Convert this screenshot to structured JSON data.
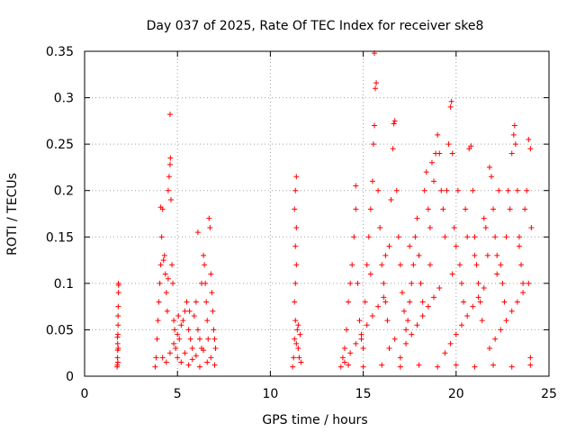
{
  "chart_data": {
    "type": "scatter",
    "title": "Day 037 of 2025, Rate Of TEC Index for receiver ske8",
    "xlabel": "GPS time / hours",
    "ylabel": "ROTI / TECUs",
    "xlim": [
      0,
      25
    ],
    "ylim": [
      0,
      0.35
    ],
    "xticks": [
      0,
      5,
      10,
      15,
      20,
      25
    ],
    "xtick_labels": [
      "0",
      "5",
      "10",
      "15",
      "20",
      "25"
    ],
    "yticks": [
      0,
      0.05,
      0.1,
      0.15,
      0.2,
      0.25,
      0.3,
      0.35
    ],
    "ytick_labels": [
      "0",
      "0.05",
      "0.1",
      "0.15",
      "0.2",
      "0.25",
      "0.3",
      "0.35"
    ],
    "grid": true,
    "marker": "plus",
    "color": "#ff0000",
    "series": [
      {
        "name": "ROTI",
        "points": [
          [
            1.75,
            0.01
          ],
          [
            1.76,
            0.012
          ],
          [
            1.77,
            0.02
          ],
          [
            1.78,
            0.028
          ],
          [
            1.78,
            0.035
          ],
          [
            1.79,
            0.045
          ],
          [
            1.8,
            0.055
          ],
          [
            1.8,
            0.065
          ],
          [
            1.81,
            0.075
          ],
          [
            1.82,
            0.09
          ],
          [
            1.82,
            0.1
          ],
          [
            1.83,
            0.098
          ],
          [
            1.77,
            0.042
          ],
          [
            1.79,
            0.015
          ],
          [
            1.81,
            0.03
          ],
          [
            3.8,
            0.01
          ],
          [
            3.85,
            0.02
          ],
          [
            3.9,
            0.04
          ],
          [
            3.95,
            0.06
          ],
          [
            4.0,
            0.08
          ],
          [
            4.05,
            0.1
          ],
          [
            4.1,
            0.12
          ],
          [
            4.15,
            0.15
          ],
          [
            4.2,
            0.18
          ],
          [
            4.1,
            0.182
          ],
          [
            4.3,
            0.13
          ],
          [
            4.35,
            0.11
          ],
          [
            4.4,
            0.09
          ],
          [
            4.45,
            0.07
          ],
          [
            4.5,
            0.2
          ],
          [
            4.55,
            0.215
          ],
          [
            4.6,
            0.228
          ],
          [
            4.62,
            0.235
          ],
          [
            4.6,
            0.282
          ],
          [
            4.65,
            0.19
          ],
          [
            4.7,
            0.12
          ],
          [
            4.75,
            0.1
          ],
          [
            4.8,
            0.06
          ],
          [
            4.85,
            0.05
          ],
          [
            4.9,
            0.03
          ],
          [
            5.0,
            0.02
          ],
          [
            5.1,
            0.04
          ],
          [
            5.2,
            0.055
          ],
          [
            5.3,
            0.06
          ],
          [
            5.4,
            0.07
          ],
          [
            5.5,
            0.08
          ],
          [
            5.6,
            0.05
          ],
          [
            5.7,
            0.04
          ],
          [
            5.8,
            0.03
          ],
          [
            5.9,
            0.065
          ],
          [
            6.0,
            0.08
          ],
          [
            6.1,
            0.05
          ],
          [
            6.2,
            0.04
          ],
          [
            6.3,
            0.03
          ],
          [
            6.4,
            0.13
          ],
          [
            6.45,
            0.12
          ],
          [
            6.5,
            0.1
          ],
          [
            6.55,
            0.08
          ],
          [
            6.6,
            0.06
          ],
          [
            6.65,
            0.04
          ],
          [
            6.7,
            0.17
          ],
          [
            6.75,
            0.16
          ],
          [
            6.8,
            0.11
          ],
          [
            6.85,
            0.09
          ],
          [
            6.9,
            0.07
          ],
          [
            6.95,
            0.05
          ],
          [
            7.0,
            0.04
          ],
          [
            7.05,
            0.03
          ],
          [
            4.2,
            0.02
          ],
          [
            4.4,
            0.015
          ],
          [
            4.6,
            0.025
          ],
          [
            4.8,
            0.035
          ],
          [
            5.0,
            0.045
          ],
          [
            5.2,
            0.015
          ],
          [
            5.4,
            0.025
          ],
          [
            5.6,
            0.012
          ],
          [
            5.8,
            0.018
          ],
          [
            6.0,
            0.022
          ],
          [
            6.2,
            0.01
          ],
          [
            6.4,
            0.028
          ],
          [
            6.6,
            0.015
          ],
          [
            6.8,
            0.02
          ],
          [
            7.0,
            0.012
          ],
          [
            6.1,
            0.155
          ],
          [
            6.3,
            0.1
          ],
          [
            4.25,
            0.125
          ],
          [
            4.5,
            0.105
          ],
          [
            5.05,
            0.065
          ],
          [
            5.65,
            0.07
          ],
          [
            11.2,
            0.01
          ],
          [
            11.25,
            0.02
          ],
          [
            11.3,
            0.04
          ],
          [
            11.35,
            0.06
          ],
          [
            11.3,
            0.08
          ],
          [
            11.35,
            0.1
          ],
          [
            11.4,
            0.12
          ],
          [
            11.35,
            0.14
          ],
          [
            11.4,
            0.16
          ],
          [
            11.3,
            0.18
          ],
          [
            11.35,
            0.2
          ],
          [
            11.4,
            0.215
          ],
          [
            11.45,
            0.05
          ],
          [
            11.5,
            0.03
          ],
          [
            11.55,
            0.02
          ],
          [
            11.6,
            0.045
          ],
          [
            11.65,
            0.015
          ],
          [
            11.4,
            0.035
          ],
          [
            11.5,
            0.055
          ],
          [
            13.8,
            0.01
          ],
          [
            13.9,
            0.02
          ],
          [
            14.0,
            0.03
          ],
          [
            14.1,
            0.05
          ],
          [
            14.2,
            0.08
          ],
          [
            14.3,
            0.1
          ],
          [
            14.4,
            0.12
          ],
          [
            14.5,
            0.15
          ],
          [
            14.6,
            0.18
          ],
          [
            14.6,
            0.205
          ],
          [
            14.7,
            0.1
          ],
          [
            14.8,
            0.06
          ],
          [
            14.9,
            0.04
          ],
          [
            15.0,
            0.03
          ],
          [
            15.1,
            0.08
          ],
          [
            15.2,
            0.12
          ],
          [
            15.3,
            0.15
          ],
          [
            15.4,
            0.18
          ],
          [
            15.5,
            0.21
          ],
          [
            15.55,
            0.25
          ],
          [
            15.6,
            0.27
          ],
          [
            15.65,
            0.31
          ],
          [
            15.7,
            0.316
          ],
          [
            15.6,
            0.348
          ],
          [
            15.8,
            0.2
          ],
          [
            15.9,
            0.16
          ],
          [
            16.0,
            0.12
          ],
          [
            16.1,
            0.1
          ],
          [
            16.2,
            0.08
          ],
          [
            16.3,
            0.06
          ],
          [
            16.4,
            0.14
          ],
          [
            16.5,
            0.19
          ],
          [
            16.6,
            0.245
          ],
          [
            16.65,
            0.272
          ],
          [
            16.7,
            0.275
          ],
          [
            16.8,
            0.2
          ],
          [
            16.9,
            0.15
          ],
          [
            17.0,
            0.12
          ],
          [
            17.1,
            0.09
          ],
          [
            17.2,
            0.07
          ],
          [
            17.3,
            0.05
          ],
          [
            17.4,
            0.06
          ],
          [
            17.5,
            0.08
          ],
          [
            17.6,
            0.1
          ],
          [
            17.7,
            0.12
          ],
          [
            17.8,
            0.15
          ],
          [
            17.9,
            0.17
          ],
          [
            18.0,
            0.13
          ],
          [
            18.1,
            0.1
          ],
          [
            18.2,
            0.08
          ],
          [
            18.3,
            0.2
          ],
          [
            18.4,
            0.22
          ],
          [
            18.5,
            0.18
          ],
          [
            18.6,
            0.16
          ],
          [
            18.7,
            0.23
          ],
          [
            18.8,
            0.21
          ],
          [
            18.9,
            0.24
          ],
          [
            19.0,
            0.26
          ],
          [
            19.1,
            0.24
          ],
          [
            19.2,
            0.2
          ],
          [
            19.3,
            0.18
          ],
          [
            19.4,
            0.15
          ],
          [
            19.5,
            0.2
          ],
          [
            19.6,
            0.25
          ],
          [
            19.7,
            0.29
          ],
          [
            19.75,
            0.296
          ],
          [
            19.8,
            0.24
          ],
          [
            19.9,
            0.16
          ],
          [
            20.0,
            0.14
          ],
          [
            20.1,
            0.2
          ],
          [
            20.2,
            0.12
          ],
          [
            20.3,
            0.1
          ],
          [
            20.4,
            0.08
          ],
          [
            20.5,
            0.18
          ],
          [
            20.6,
            0.15
          ],
          [
            20.7,
            0.245
          ],
          [
            20.8,
            0.248
          ],
          [
            20.9,
            0.2
          ],
          [
            21.0,
            0.15
          ],
          [
            21.1,
            0.12
          ],
          [
            21.2,
            0.1
          ],
          [
            21.3,
            0.08
          ],
          [
            21.4,
            0.06
          ],
          [
            21.5,
            0.17
          ],
          [
            21.6,
            0.16
          ],
          [
            21.7,
            0.13
          ],
          [
            21.8,
            0.225
          ],
          [
            21.9,
            0.215
          ],
          [
            22.0,
            0.18
          ],
          [
            22.1,
            0.15
          ],
          [
            22.2,
            0.13
          ],
          [
            22.3,
            0.2
          ],
          [
            22.4,
            0.12
          ],
          [
            22.5,
            0.1
          ],
          [
            22.6,
            0.08
          ],
          [
            22.7,
            0.15
          ],
          [
            22.8,
            0.2
          ],
          [
            22.9,
            0.18
          ],
          [
            23.0,
            0.24
          ],
          [
            23.1,
            0.26
          ],
          [
            23.15,
            0.27
          ],
          [
            23.2,
            0.25
          ],
          [
            23.3,
            0.2
          ],
          [
            23.4,
            0.15
          ],
          [
            23.5,
            0.12
          ],
          [
            23.6,
            0.1
          ],
          [
            23.7,
            0.18
          ],
          [
            23.8,
            0.2
          ],
          [
            23.9,
            0.255
          ],
          [
            24.0,
            0.245
          ],
          [
            24.05,
            0.16
          ],
          [
            14.0,
            0.015
          ],
          [
            14.3,
            0.025
          ],
          [
            14.6,
            0.035
          ],
          [
            14.9,
            0.045
          ],
          [
            15.2,
            0.055
          ],
          [
            15.5,
            0.065
          ],
          [
            15.8,
            0.075
          ],
          [
            16.1,
            0.085
          ],
          [
            16.4,
            0.03
          ],
          [
            16.7,
            0.04
          ],
          [
            17.0,
            0.02
          ],
          [
            17.3,
            0.035
          ],
          [
            17.6,
            0.045
          ],
          [
            17.9,
            0.055
          ],
          [
            18.2,
            0.065
          ],
          [
            18.5,
            0.075
          ],
          [
            18.8,
            0.085
          ],
          [
            19.1,
            0.095
          ],
          [
            19.4,
            0.025
          ],
          [
            19.7,
            0.035
          ],
          [
            20.0,
            0.045
          ],
          [
            20.3,
            0.055
          ],
          [
            20.6,
            0.065
          ],
          [
            20.9,
            0.075
          ],
          [
            21.2,
            0.085
          ],
          [
            21.5,
            0.095
          ],
          [
            21.8,
            0.03
          ],
          [
            22.1,
            0.04
          ],
          [
            22.4,
            0.05
          ],
          [
            22.7,
            0.06
          ],
          [
            23.0,
            0.07
          ],
          [
            23.3,
            0.08
          ],
          [
            23.6,
            0.09
          ],
          [
            23.9,
            0.1
          ],
          [
            24.0,
            0.02
          ],
          [
            14.2,
            0.012
          ],
          [
            15.0,
            0.01
          ],
          [
            16.0,
            0.012
          ],
          [
            17.0,
            0.01
          ],
          [
            18.0,
            0.012
          ],
          [
            19.0,
            0.01
          ],
          [
            20.0,
            0.012
          ],
          [
            21.0,
            0.01
          ],
          [
            22.0,
            0.012
          ],
          [
            23.0,
            0.01
          ],
          [
            24.0,
            0.012
          ],
          [
            15.4,
            0.11
          ],
          [
            16.2,
            0.13
          ],
          [
            17.5,
            0.14
          ],
          [
            18.6,
            0.12
          ],
          [
            19.8,
            0.11
          ],
          [
            21.0,
            0.13
          ],
          [
            22.2,
            0.11
          ],
          [
            23.4,
            0.14
          ]
        ]
      }
    ]
  }
}
